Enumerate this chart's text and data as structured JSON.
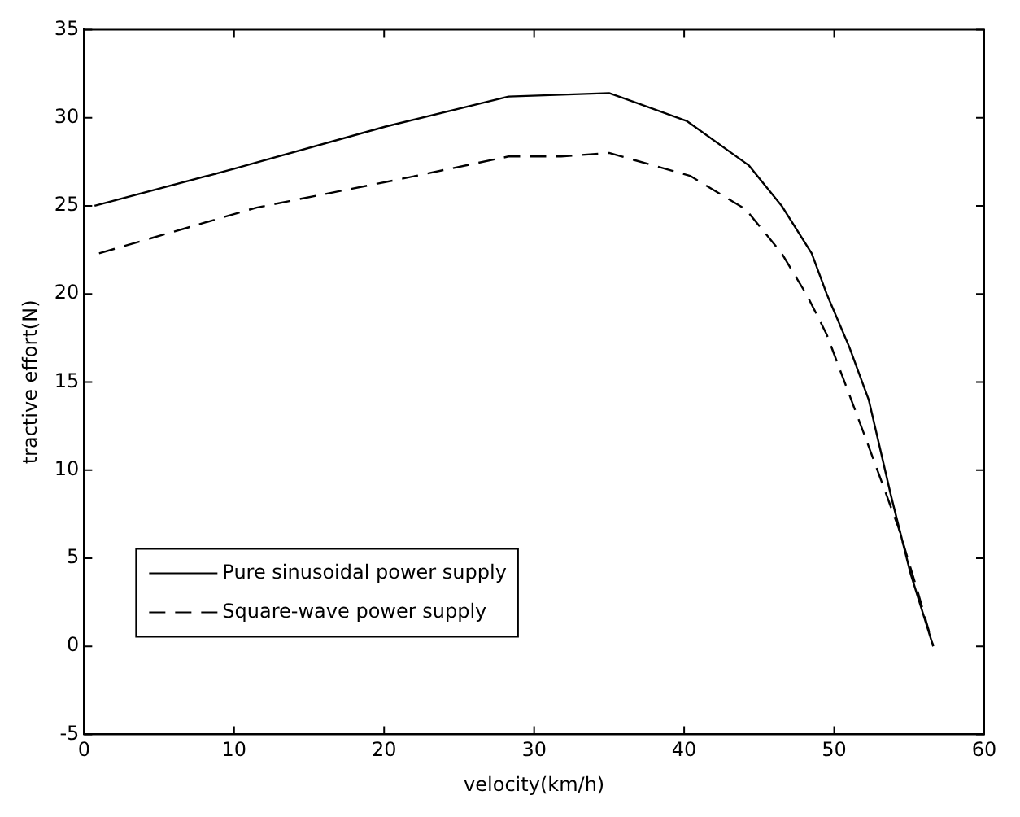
{
  "chart_data": {
    "type": "line",
    "xlabel": "velocity(km/h)",
    "ylabel": "tractive effort(N)",
    "xlim": [
      0,
      60
    ],
    "xticks": [
      0,
      10,
      20,
      30,
      40,
      50,
      60
    ],
    "ylim": [
      -5,
      35
    ],
    "yticks": [
      -5,
      0,
      5,
      10,
      15,
      20,
      25,
      30,
      35
    ],
    "grid": false,
    "legend": "bottom left",
    "marker": "none",
    "series": [
      {
        "name": "Pure sinusoidal power supply",
        "color": "#000000",
        "line_style": "solid",
        "x": [
          0.7,
          10,
          20.1,
          28.3,
          35,
          40.2,
          44.3,
          46.5,
          48.5,
          49.5,
          51,
          52.3,
          53.8,
          55.1,
          56.6
        ],
        "values": [
          25,
          27.1,
          29.5,
          31.2,
          31.4,
          29.8,
          27.3,
          25,
          22.3,
          20,
          17,
          14,
          8.5,
          4.1,
          0
        ]
      },
      {
        "name": "Square-wave power supply",
        "color": "#000000",
        "line_style": "dashed",
        "x": [
          1,
          11.5,
          21,
          28.3,
          31.8,
          35,
          40.4,
          44.1,
          46.5,
          48.2,
          49.5,
          52.1,
          54.3,
          55.6,
          56.6
        ],
        "values": [
          22.3,
          24.9,
          26.5,
          27.8,
          27.8,
          28,
          26.7,
          24.8,
          22.3,
          19.9,
          17.7,
          11.8,
          6.7,
          3,
          0
        ]
      }
    ]
  }
}
